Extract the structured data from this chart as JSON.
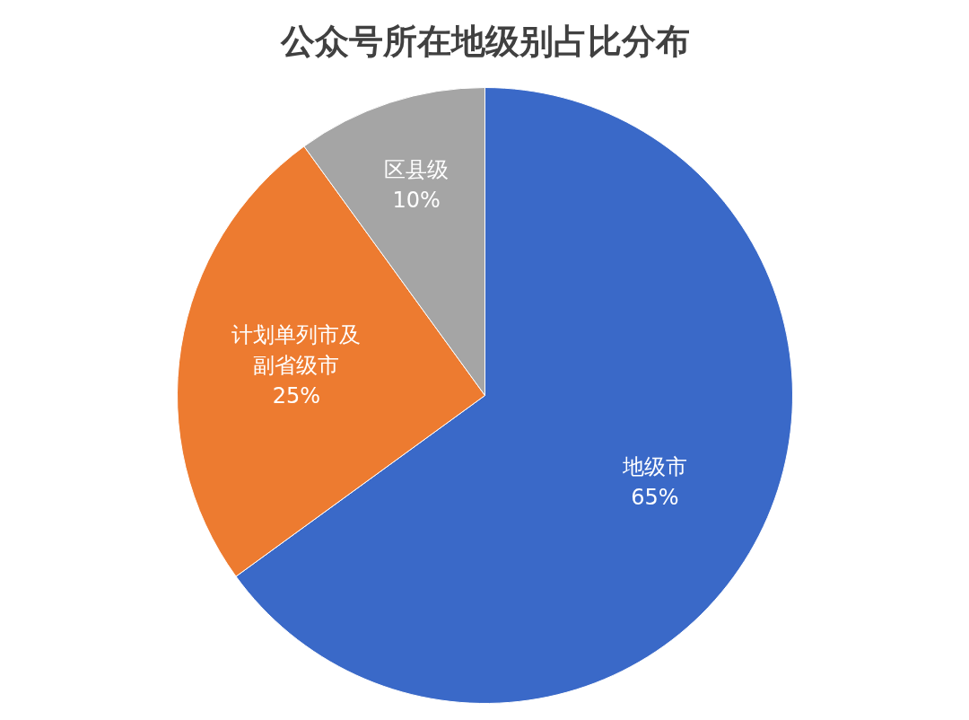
{
  "chart_data": {
    "type": "pie",
    "title": "公众号所在地级别占比分布",
    "categories": [
      "地级市",
      "计划单列市及副省级市",
      "区县级"
    ],
    "values": [
      65,
      25,
      10
    ],
    "colors": [
      "#3a69c8",
      "#ed7b30",
      "#a5a5a5"
    ],
    "value_labels": [
      "65%",
      "25%",
      "10%"
    ]
  }
}
